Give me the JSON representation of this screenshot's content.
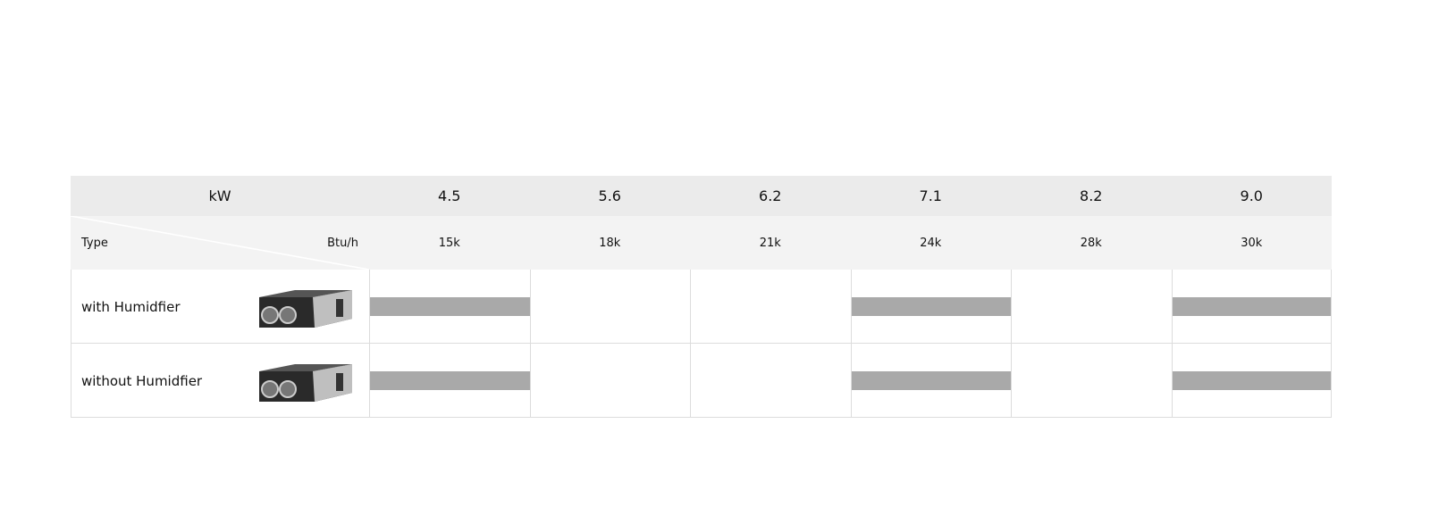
{
  "header": {
    "unit_top": "kW",
    "type_label": "Type",
    "unit_bottom": "Btu/h"
  },
  "columns": [
    {
      "kw": "4.5",
      "btu": "15k"
    },
    {
      "kw": "5.6",
      "btu": "18k"
    },
    {
      "kw": "6.2",
      "btu": "21k"
    },
    {
      "kw": "7.1",
      "btu": "24k"
    },
    {
      "kw": "8.2",
      "btu": "28k"
    },
    {
      "kw": "9.0",
      "btu": "30k"
    }
  ],
  "rows": [
    {
      "label": "with Humidfier",
      "available": [
        true,
        false,
        false,
        true,
        false,
        true
      ]
    },
    {
      "label": "without Humidfier",
      "available": [
        true,
        false,
        false,
        true,
        false,
        true
      ]
    }
  ]
}
